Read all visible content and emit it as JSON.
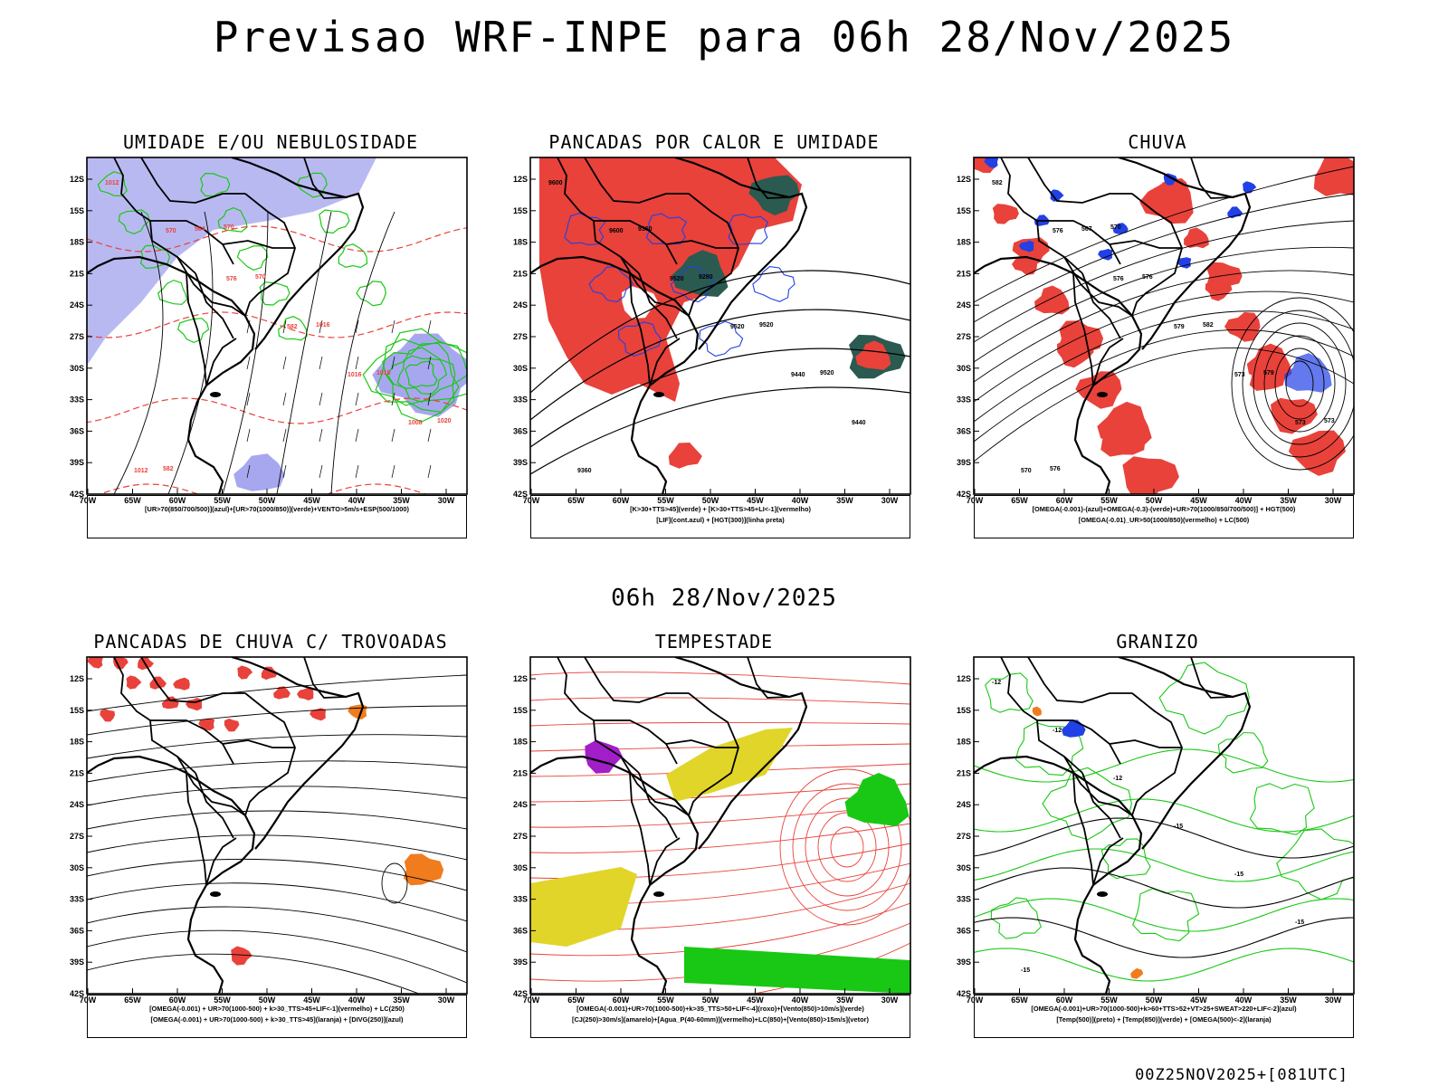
{
  "header": {
    "title": "Previsao WRF-INPE  para 06h 28/Nov/2025",
    "mid_time": "06h 28/Nov/2025"
  },
  "footer": "00Z25NOV2025+[081UTC]",
  "axes": {
    "y_labels": [
      "12S",
      "15S",
      "18S",
      "21S",
      "24S",
      "27S",
      "30S",
      "33S",
      "36S",
      "39S",
      "42S"
    ],
    "x_labels": [
      "70W",
      "65W",
      "60W",
      "55W",
      "50W",
      "45W",
      "40W",
      "35W",
      "30W"
    ]
  },
  "colors": {
    "red": "#e8423b",
    "green": "#19c814",
    "blue": "#2140e6",
    "lavender": "#a7a7ef",
    "teal": "#2b5a51",
    "yellow": "#e1d52a",
    "orange": "#f07c1e",
    "purple": "#a21ec8",
    "black": "#000000"
  },
  "panels": [
    {
      "title": "UMIDADE E/OU NEBULOSIDADE",
      "legend": [
        "[UR>70(850/700/500)](azul)+[UR>70(1000/850)](verde)+VENTO>5m/s+ESP(500/1000)"
      ],
      "labels": [
        "1012",
        "570",
        "576",
        "582",
        "1016",
        "1008",
        "1012",
        "564",
        "570",
        "1016",
        "1018",
        "1020",
        "582",
        "570"
      ]
    },
    {
      "title": "PANCADAS POR CALOR E UMIDADE",
      "legend": [
        "[K>30+TTS>45](verde) + [K>30+TTS>45+LI<-1](vermelho)",
        "[LIF](cont.azul) + [HGT(300)](linha preta)"
      ],
      "labels": [
        "9600",
        "9600",
        "9520",
        "9520",
        "9440",
        "9440",
        "9360",
        "9360",
        "9280",
        "9520",
        "9520"
      ]
    },
    {
      "title": "CHUVA",
      "legend": [
        "[OMEGA(-0.001)-(azul)+OMEGA(-0.3)-(verde)+UR>70(1000/850/700/500)] + HGT(500)",
        "[OMEGA(-0.01)_UR>50(1000/850)(vermelho) + LC(500)"
      ],
      "labels": [
        "582",
        "576",
        "576",
        "579",
        "573",
        "573",
        "570",
        "567",
        "576",
        "582",
        "579",
        "573",
        "576",
        "570"
      ]
    },
    {
      "title": "PANCADAS DE CHUVA C/ TROVOADAS",
      "legend": [
        "[OMEGA(-0.001) + UR>70(1000-500) + k>30_TTS>45+LIF<-1](vermelho) + LC(250)",
        "[OMEGA(-0.001) + UR>70(1000-500) + k>30_TTS>45](laranja) + [DIVG(250)](azul)"
      ],
      "labels": []
    },
    {
      "title": "TEMPESTADE",
      "legend": [
        "[OMEGA(-0.001)+UR>70(1000-500)+k>35_TTS>50+LIF<-4](roxo)+[Vento(850)>10m/s](verde)",
        "[CJ(250)>30m/s](amarelo)+[Agua_P(40-60mm)](vermelho)+LC(850)+[Vento(850)>15m/s](vetor)"
      ],
      "labels": []
    },
    {
      "title": "GRANIZO",
      "legend": [
        "[OMEGA(-0.001)+UR>70(1000-500)+k>60+TTS>52+VT>25+SWEAT>220+LIF<-2](azul)",
        "[Temp(500)](preto) + [Temp(850)](verde) + [OMEGA(500)<-2](laranja)"
      ],
      "labels": [
        "-12",
        "-12",
        "-12",
        "-15",
        "-15",
        "-15",
        "-15"
      ]
    }
  ]
}
